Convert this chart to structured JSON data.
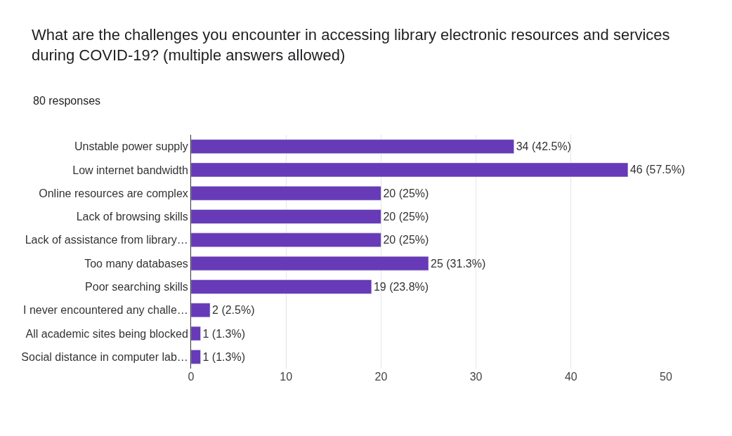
{
  "chart_data": {
    "type": "bar",
    "orientation": "horizontal",
    "title": "What are the challenges you encounter in accessing library electronic resources and services during COVID-19? (multiple answers allowed)",
    "subtitle": "80 responses",
    "categories": [
      "Unstable power supply",
      "Low internet bandwidth",
      "Online resources are complex",
      "Lack of browsing skills",
      "Lack of assistance from library…",
      "Too many databases",
      "Poor searching skills",
      "I never encountered any challe…",
      "All academic sites being blocked",
      "Social distance in computer lab…"
    ],
    "values": [
      34,
      46,
      20,
      20,
      20,
      25,
      19,
      2,
      1,
      1
    ],
    "value_labels": [
      "34 (42.5%)",
      "46 (57.5%)",
      "20 (25%)",
      "20 (25%)",
      "20 (25%)",
      "25 (31.3%)",
      "19 (23.8%)",
      "2 (2.5%)",
      "1 (1.3%)",
      "1 (1.3%)"
    ],
    "color": "#673ab7",
    "xlim": [
      0,
      50
    ],
    "xticks": [
      0,
      10,
      20,
      30,
      40,
      50
    ],
    "grid": "x",
    "legend": false
  }
}
